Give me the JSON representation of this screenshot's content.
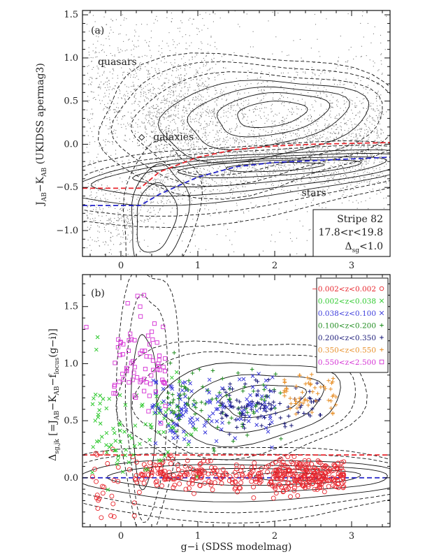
{
  "chart_data": [
    {
      "type": "scatter",
      "panel_label": "(a)",
      "xlim": [
        -0.5,
        3.5
      ],
      "ylim": [
        -1.3,
        1.55
      ],
      "xticks": [
        0,
        1,
        2,
        3
      ],
      "yticks": [
        -1.0,
        -0.5,
        0.0,
        0.5,
        1.0,
        1.5
      ],
      "ytick_labels": [
        "−1.0",
        "−0.5",
        "0.0",
        "0.5",
        "1.0",
        "1.5"
      ],
      "ylabel": "Jₐᵦ − Kₐᵦ (UKIDSS apermag3)",
      "ylabel_main": "J",
      "ylabel_sub1": "AB",
      "ylabel_mid": "−K",
      "ylabel_sub2": "AB",
      "ylabel_tail": " (UKIDSS apermag3)",
      "annotations": [
        {
          "text": "quasars",
          "x": -0.3,
          "y": 0.92
        },
        {
          "text": "galaxies",
          "x": 0.42,
          "y": 0.05
        },
        {
          "text": "stars",
          "x": 2.35,
          "y": -0.6
        }
      ],
      "info_box": {
        "line1": "Stripe 82",
        "line2": "17.8<r<19.8",
        "line3_main": "Δ",
        "line3_sub": "sg",
        "line3_tail": "<1.0"
      },
      "red_line": {
        "x": [
          -0.5,
          0.25,
          0.5,
          1.0,
          1.5,
          2.0,
          2.5,
          3.0,
          3.5
        ],
        "y": [
          -0.51,
          -0.51,
          -0.32,
          -0.15,
          -0.06,
          -0.02,
          0.0,
          0.01,
          0.02
        ]
      },
      "blue_line": {
        "x": [
          -0.5,
          0.25,
          0.5,
          1.0,
          1.5,
          2.0,
          2.5,
          3.0,
          3.5
        ],
        "y": [
          -0.71,
          -0.71,
          -0.58,
          -0.38,
          -0.26,
          -0.21,
          -0.19,
          -0.17,
          -0.15
        ]
      }
    },
    {
      "type": "scatter",
      "panel_label": "(b)",
      "xlim": [
        -0.5,
        3.5
      ],
      "ylim": [
        -0.43,
        1.78
      ],
      "xticks": [
        0,
        1,
        2,
        3
      ],
      "yticks": [
        0.0,
        0.5,
        1.0,
        1.5
      ],
      "ytick_labels": [
        "0.0",
        "0.5",
        "1.0",
        "1.5"
      ],
      "xlabel": "g−i (SDSS modelmag)",
      "ylabel_main": "Δ",
      "ylabel_sub1": "sg,jk",
      "ylabel_tail": " [=J",
      "ylabel_sub2": "AB",
      "ylabel_mid": "−K",
      "ylabel_sub3": "AB",
      "ylabel_end": "−f",
      "ylabel_sub4": "locus",
      "ylabel_close": "(g−i)]",
      "red_line_y": 0.2,
      "blue_line_y": 0.0,
      "legend": [
        {
          "label": "−0.002<z<0.002",
          "color": "#e8262d",
          "marker": "o"
        },
        {
          "label": "0.002<z<0.038",
          "color": "#2ec92e",
          "marker": "x"
        },
        {
          "label": "0.038<z<0.100",
          "color": "#3a3adb",
          "marker": "x"
        },
        {
          "label": "0.100<z<0.200",
          "color": "#1f8c1f",
          "marker": "+"
        },
        {
          "label": "0.200<z<0.350",
          "color": "#1a1a78",
          "marker": "+"
        },
        {
          "label": "0.350<z<0.550",
          "color": "#e8902a",
          "marker": "+"
        },
        {
          "label": "0.550<z<2.500",
          "color": "#d42fd4",
          "marker": "s"
        }
      ]
    }
  ]
}
